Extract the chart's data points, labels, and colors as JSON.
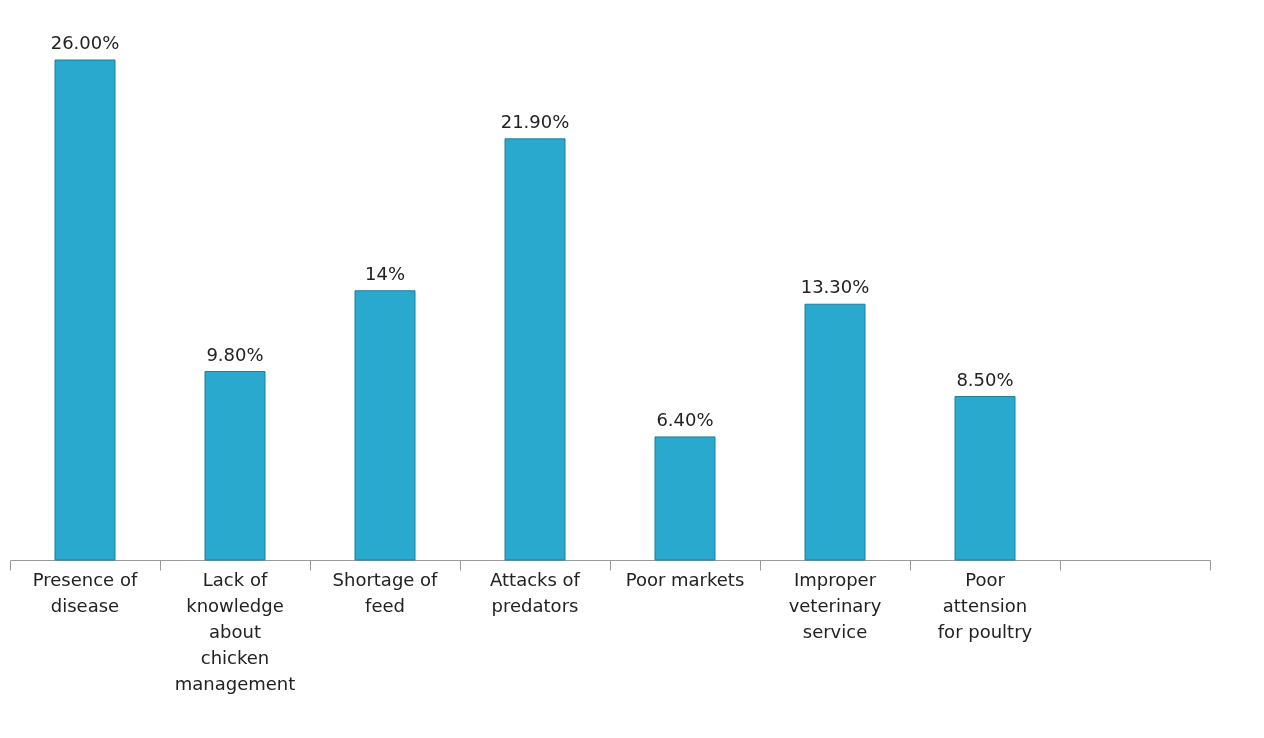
{
  "chart_data": {
    "type": "bar",
    "categories": [
      "Presence of disease",
      "Lack of knowledge about chicken management",
      "Shortage of feed",
      "Attacks of predators",
      "Poor markets",
      "Improper veterinary service",
      "Poor attension for poultry",
      null
    ],
    "values": [
      26.0,
      9.8,
      14,
      21.9,
      6.4,
      13.3,
      8.5,
      null
    ],
    "value_labels": [
      "26.00%",
      "9.80%",
      "14%",
      "21.90%",
      "6.40%",
      "13.30%",
      "8.50%",
      null
    ],
    "color": "#2aa9cf",
    "grid": false
  }
}
